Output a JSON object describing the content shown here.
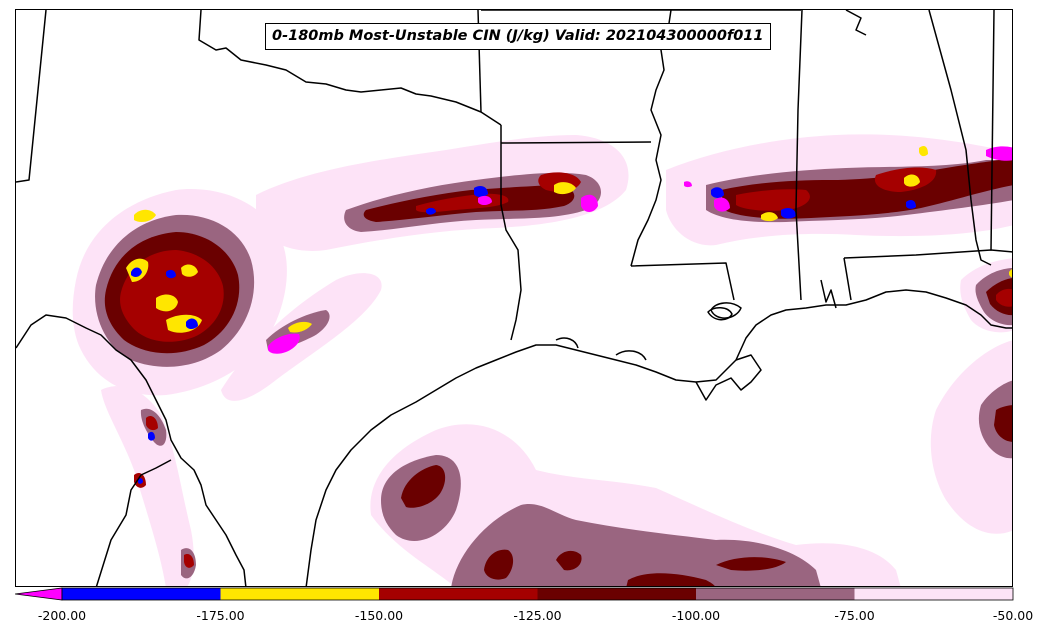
{
  "title": "0-180mb Most-Unstable CIN (J/kg) Valid: 202104300000f011",
  "colorbar": {
    "ticks": [
      "-200.00",
      "-175.00",
      "-150.00",
      "-125.00",
      "-100.00",
      "-75.00",
      "-50.00"
    ],
    "tick_values": [
      -200,
      -175,
      -150,
      -125,
      -100,
      -75,
      -50
    ],
    "extend": "min",
    "under_color": "#ff00ff",
    "bins": [
      {
        "range": [
          -200,
          -175
        ],
        "color": "#0000ff"
      },
      {
        "range": [
          -175,
          -150
        ],
        "color": "#ffe600"
      },
      {
        "range": [
          -150,
          -125
        ],
        "color": "#a50000"
      },
      {
        "range": [
          -125,
          -100
        ],
        "color": "#6a0000"
      },
      {
        "range": [
          -100,
          -75
        ],
        "color": "#9a6580"
      },
      {
        "range": [
          -75,
          -50
        ],
        "color": "#fde3f7"
      }
    ]
  },
  "colors": {
    "magenta": "#ff00ff",
    "blue": "#0000ff",
    "yellow": "#ffe600",
    "red": "#a50000",
    "darkred": "#6a0000",
    "mauve": "#9a6580",
    "pink": "#fde3f7",
    "boundary": "#000000"
  }
}
